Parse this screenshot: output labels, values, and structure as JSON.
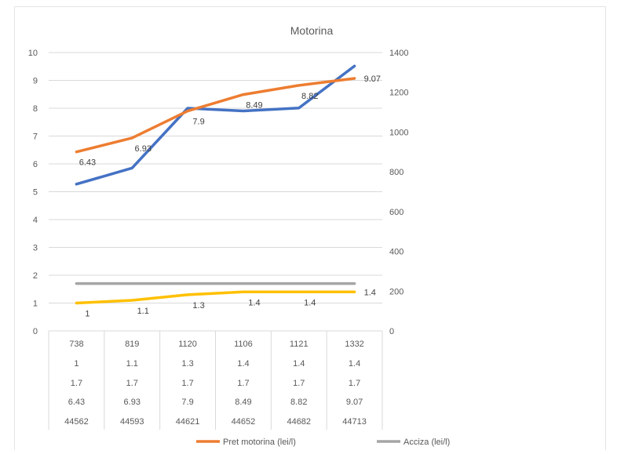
{
  "chart_data": {
    "type": "line",
    "title": "Motorina",
    "categories": [
      "44562",
      "44593",
      "44621",
      "44652",
      "44682",
      "44713"
    ],
    "y_left": {
      "range": [
        0,
        10
      ],
      "ticks": [
        0,
        1,
        2,
        3,
        4,
        5,
        6,
        7,
        8,
        9,
        10
      ]
    },
    "y_right": {
      "range": [
        0,
        1400
      ],
      "ticks": [
        0,
        200,
        400,
        600,
        800,
        1000,
        1200,
        1400
      ]
    },
    "grid": true,
    "legend_position": "bottom",
    "series": [
      {
        "values": [
          738,
          819,
          1120,
          1106,
          1121,
          1332
        ],
        "axis": "right",
        "color": "#4472c4",
        "data_labels": false
      },
      {
        "values": [
          1,
          1.1,
          1.3,
          1.4,
          1.4,
          1.4
        ],
        "axis": "left",
        "color": "#ffc000",
        "data_labels": true
      },
      {
        "name": "Acciza (lei/l)",
        "values": [
          1.7,
          1.7,
          1.7,
          1.7,
          1.7,
          1.7
        ],
        "axis": "left",
        "color": "#a5a5a5",
        "data_labels": false
      },
      {
        "name": "Pret motorina (lei/l)",
        "values": [
          6.43,
          6.93,
          7.9,
          8.49,
          8.82,
          9.07
        ],
        "axis": "left",
        "color": "#ed7d31",
        "data_labels": true
      }
    ],
    "data_table": [
      [
        "738",
        "819",
        "1120",
        "1106",
        "1121",
        "1332"
      ],
      [
        "1",
        "1.1",
        "1.3",
        "1.4",
        "1.4",
        "1.4"
      ],
      [
        "1.7",
        "1.7",
        "1.7",
        "1.7",
        "1.7",
        "1.7"
      ],
      [
        "6.43",
        "6.93",
        "7.9",
        "8.49",
        "8.82",
        "9.07"
      ],
      [
        "44562",
        "44593",
        "44621",
        "44652",
        "44682",
        "44713"
      ]
    ]
  }
}
